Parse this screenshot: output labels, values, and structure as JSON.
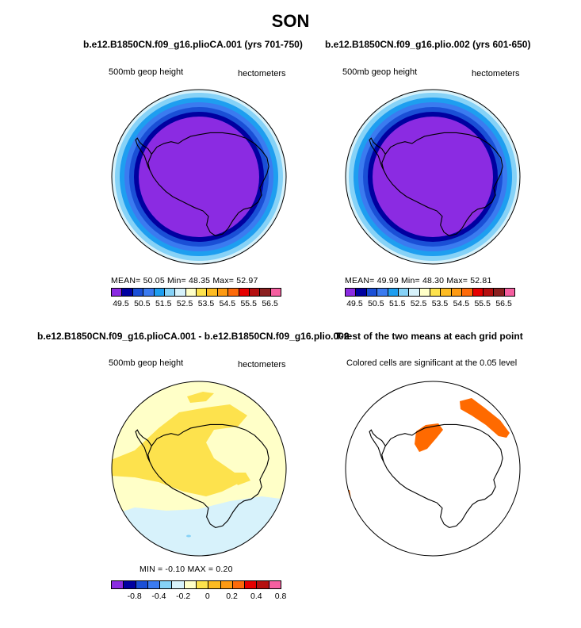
{
  "title": "SON",
  "panels": {
    "p1": {
      "title": "b.e12.B1850CN.f09_g16.plioCA.001 (yrs 701-750)",
      "left_label": "500mb geop height",
      "right_label": "hectometers",
      "stats": "MEAN=   50.05   Min=   48.35   Max=   52.97",
      "colorbar_labels": [
        "49.5",
        "50.5",
        "51.5",
        "52.5",
        "53.5",
        "54.5",
        "55.5",
        "56.5"
      ]
    },
    "p2": {
      "title": "b.e12.B1850CN.f09_g16.plio.002 (yrs 601-650)",
      "left_label": "500mb geop height",
      "right_label": "hectometers",
      "stats": "MEAN=   49.99   Min=   48.30   Max=   52.81",
      "colorbar_labels": [
        "49.5",
        "50.5",
        "51.5",
        "52.5",
        "53.5",
        "54.5",
        "55.5",
        "56.5"
      ]
    },
    "p3": {
      "title": "b.e12.B1850CN.f09_g16.plioCA.001 - b.e12.B1850CN.f09_g16.plio.002",
      "left_label": "500mb geop height",
      "right_label": "hectometers",
      "stats": "MIN =   -0.10   MAX =    0.20",
      "colorbar_labels": [
        "-0.8",
        "-0.4",
        "-0.2",
        "0",
        "0.2",
        "0.4",
        "0.8"
      ]
    },
    "p4": {
      "title": "T-test of the two means at each grid point",
      "subtitle": "Colored cells are significant at the 0.05 level"
    }
  },
  "colors": {
    "levels": [
      "#8b2be2",
      "#0000a0",
      "#1a4fd6",
      "#3b7bf0",
      "#1e9ef0",
      "#86d2f7",
      "#d7f2fb",
      "#ffffc8",
      "#fde24d",
      "#fdbb22",
      "#fd9a13",
      "#fd6a0a",
      "#e60000",
      "#b51010",
      "#8b2020",
      "#f55fa0"
    ],
    "diff_levels": [
      "#8b2be2",
      "#0000a0",
      "#1a4fd6",
      "#3b7bf0",
      "#86d2f7",
      "#d7f2fb",
      "#ffffc8",
      "#fde24d",
      "#fdbb22",
      "#fd9a13",
      "#fd6a0a",
      "#e60000",
      "#b51010",
      "#f55fa0"
    ],
    "significant": "#ff6a00",
    "land_outline": "#000000"
  }
}
